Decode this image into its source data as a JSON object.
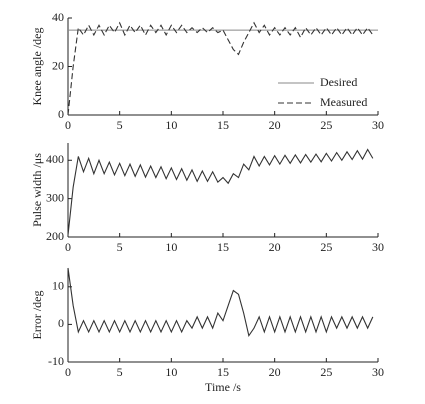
{
  "chart_data": [
    {
      "type": "line",
      "ylabel": "Knee angle /deg",
      "x": [
        0,
        0.5,
        1,
        1.5,
        2,
        2.5,
        3,
        3.5,
        4,
        4.5,
        5,
        5.5,
        6,
        6.5,
        7,
        7.5,
        8,
        8.5,
        9,
        9.5,
        10,
        10.5,
        11,
        11.5,
        12,
        12.5,
        13,
        13.5,
        14,
        14.5,
        15,
        15.5,
        16,
        16.5,
        17,
        17.5,
        18,
        18.5,
        19,
        19.5,
        20,
        20.5,
        21,
        21.5,
        22,
        22.5,
        23,
        23.5,
        24,
        24.5,
        25,
        25.5,
        26,
        26.5,
        27,
        27.5,
        28,
        28.5,
        29,
        29.5
      ],
      "series": [
        {
          "name": "Desired",
          "color": "#888888",
          "line_style": "solid",
          "x": [
            0,
            30
          ],
          "values": [
            35,
            35
          ]
        },
        {
          "name": "Measured",
          "color": "#333333",
          "line_style": "dashed",
          "values": [
            0,
            20,
            36,
            33,
            37,
            33,
            37,
            33,
            37,
            34,
            38,
            33,
            37,
            34,
            37,
            33,
            37,
            34,
            37,
            33,
            37,
            34,
            37,
            34,
            36,
            34,
            36,
            34,
            36,
            34,
            35,
            31,
            27,
            25,
            30,
            34,
            38,
            34,
            37,
            33,
            36,
            33,
            36,
            33,
            36,
            32,
            36,
            33,
            36,
            33,
            36,
            33,
            36,
            33,
            36,
            33,
            36,
            33,
            36,
            33
          ]
        }
      ],
      "xlim": [
        0,
        30
      ],
      "xticks": [
        0,
        5,
        10,
        15,
        20,
        25,
        30
      ],
      "ylim": [
        0,
        40
      ],
      "yticks": [
        0,
        20,
        40
      ],
      "legend": "lower right"
    },
    {
      "type": "line",
      "ylabel": "Pulse width /μs",
      "x": [
        0,
        0.5,
        1,
        1.5,
        2,
        2.5,
        3,
        3.5,
        4,
        4.5,
        5,
        5.5,
        6,
        6.5,
        7,
        7.5,
        8,
        8.5,
        9,
        9.5,
        10,
        10.5,
        11,
        11.5,
        12,
        12.5,
        13,
        13.5,
        14,
        14.5,
        15,
        15.5,
        16,
        16.5,
        17,
        17.5,
        18,
        18.5,
        19,
        19.5,
        20,
        20.5,
        21,
        21.5,
        22,
        22.5,
        23,
        23.5,
        24,
        24.5,
        25,
        25.5,
        26,
        26.5,
        27,
        27.5,
        28,
        28.5,
        29,
        29.5
      ],
      "series": [
        {
          "name": "Pulse width",
          "color": "#333333",
          "line_style": "solid",
          "values": [
            205,
            330,
            410,
            370,
            405,
            365,
            400,
            365,
            395,
            362,
            392,
            360,
            390,
            358,
            388,
            356,
            385,
            355,
            383,
            352,
            380,
            350,
            378,
            348,
            375,
            345,
            372,
            345,
            370,
            343,
            355,
            340,
            365,
            355,
            390,
            375,
            410,
            385,
            410,
            388,
            412,
            390,
            413,
            392,
            414,
            393,
            415,
            395,
            416,
            396,
            418,
            398,
            420,
            400,
            422,
            402,
            425,
            403,
            428,
            405
          ]
        }
      ],
      "xlim": [
        0,
        30
      ],
      "xticks": [
        0,
        5,
        10,
        15,
        20,
        25,
        30
      ],
      "ylim": [
        200,
        445
      ],
      "yticks": [
        200,
        300,
        400
      ]
    },
    {
      "type": "line",
      "ylabel": "Error /deg",
      "xlabel": "Time /s",
      "x": [
        0,
        0.5,
        1,
        1.5,
        2,
        2.5,
        3,
        3.5,
        4,
        4.5,
        5,
        5.5,
        6,
        6.5,
        7,
        7.5,
        8,
        8.5,
        9,
        9.5,
        10,
        10.5,
        11,
        11.5,
        12,
        12.5,
        13,
        13.5,
        14,
        14.5,
        15,
        15.5,
        16,
        16.5,
        17,
        17.5,
        18,
        18.5,
        19,
        19.5,
        20,
        20.5,
        21,
        21.5,
        22,
        22.5,
        23,
        23.5,
        24,
        24.5,
        25,
        25.5,
        26,
        26.5,
        27,
        27.5,
        28,
        28.5,
        29,
        29.5
      ],
      "series": [
        {
          "name": "Error",
          "color": "#333333",
          "line_style": "solid",
          "values": [
            15,
            5,
            -2,
            1,
            -2,
            1,
            -2,
            1,
            -2,
            1,
            -2,
            1,
            -2,
            1,
            -2,
            1,
            -2,
            1,
            -2,
            1,
            -2,
            1,
            -2,
            1,
            -1,
            2,
            -1,
            2,
            -1,
            3,
            1,
            5,
            9,
            8,
            3,
            -3,
            -1,
            2,
            -2,
            2,
            -2,
            2,
            -2,
            2,
            -2,
            2,
            -2,
            2,
            -2,
            2,
            -2,
            2,
            -1,
            2,
            -1,
            2,
            -1,
            2,
            -1,
            2
          ]
        }
      ],
      "xlim": [
        0,
        30
      ],
      "xticks": [
        0,
        5,
        10,
        15,
        20,
        25,
        30
      ],
      "ylim": [
        -10,
        15
      ],
      "yticks": [
        -10,
        0,
        10
      ]
    }
  ]
}
